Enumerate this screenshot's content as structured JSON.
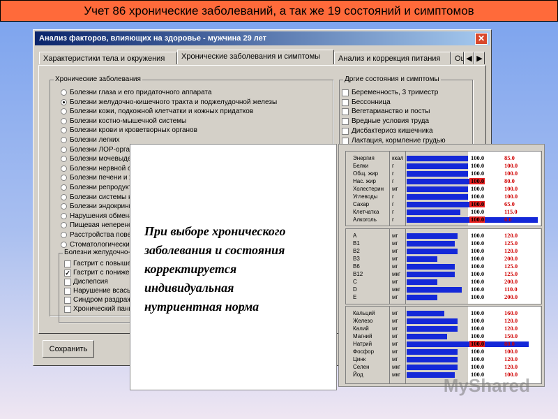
{
  "banner": "Учет 86 хронические заболеваний, а так же 19 состояний и симптомов",
  "window": {
    "title": "Анализ факторов, влияющих на здоровье - мужчина 29 лет",
    "tabs": [
      "Характеристики тела и окружения",
      "Хронические заболевания и симптомы",
      "Анализ и коррекция питания",
      "Оц"
    ],
    "active_tab": 1,
    "chronic": {
      "title": "Хронические заболевания",
      "items": [
        {
          "label": "Болезни глаза и его придаточного аппарата",
          "checked": false
        },
        {
          "label": "Болезни желудочно-кишечного тракта и поджелудочной железы",
          "checked": true
        },
        {
          "label": "Болезни кожи, подкожной клетчатки и кожных придатков",
          "checked": false
        },
        {
          "label": "Болезни костно-мышечной системы",
          "checked": false
        },
        {
          "label": "Болезни крови и кроветворных органов",
          "checked": false
        },
        {
          "label": "Болезни легких",
          "checked": false
        },
        {
          "label": "Болезни ЛОР-органо",
          "checked": false
        },
        {
          "label": "Болезни мочевыдел",
          "checked": false
        },
        {
          "label": "Болезни нервной сис",
          "checked": false
        },
        {
          "label": "Болезни печени и же",
          "checked": false
        },
        {
          "label": "Болезни репродукти",
          "checked": false
        },
        {
          "label": "Болезни системы кр",
          "checked": false
        },
        {
          "label": "Болезни эндокринно",
          "checked": false
        },
        {
          "label": "Нарушения обмена в",
          "checked": false
        },
        {
          "label": "Пищевая непереноси",
          "checked": false
        },
        {
          "label": "Расстройства поведе",
          "checked": false
        },
        {
          "label": "Стоматологические",
          "checked": false
        }
      ]
    },
    "subgroup": {
      "title": "Болезни желудочно-ки",
      "items": [
        {
          "label": "Гастрит с повышен",
          "checked": false
        },
        {
          "label": "Гастрит с понижен",
          "checked": true
        },
        {
          "label": "Диспепсия",
          "checked": false
        },
        {
          "label": "Нарушение всасыва",
          "checked": false
        },
        {
          "label": "Синдром раздраже",
          "checked": false
        },
        {
          "label": "Хронический панкр",
          "checked": false
        }
      ]
    },
    "other": {
      "title": "Дргие состояния и симптомы",
      "items": [
        {
          "label": "Беременность, 3 триместр",
          "checked": false
        },
        {
          "label": "Бессонница",
          "checked": false
        },
        {
          "label": "Вегетарианство и посты",
          "checked": false
        },
        {
          "label": "Вредные условия труда",
          "checked": false
        },
        {
          "label": "Дисбактериоз кишечника",
          "checked": false
        },
        {
          "label": "Лактация, кормление грудью",
          "checked": false
        }
      ]
    },
    "save_button": "Сохранить"
  },
  "note": {
    "lines": [
      "При выборе хронического",
      "заболевания и состояния",
      "корректируется",
      "индивидуальная",
      "нутриентная норма"
    ]
  },
  "nutrients": {
    "sections": [
      {
        "rows": [
          {
            "name": "Энергия",
            "unit": "ккал",
            "bar": 46,
            "norm": "100.0",
            "value": "85.0",
            "highlight": false
          },
          {
            "name": "Белки",
            "unit": "г",
            "bar": 46,
            "norm": "100.0",
            "value": "100.0",
            "highlight": false
          },
          {
            "name": "Общ. жир",
            "unit": "г",
            "bar": 46,
            "norm": "100.0",
            "value": "100.0",
            "highlight": false
          },
          {
            "name": "Нас. жир",
            "unit": "г",
            "bar": 51,
            "norm": "100.0",
            "value": "80.0",
            "highlight": true
          },
          {
            "name": "Холестерин",
            "unit": "мг",
            "bar": 46,
            "norm": "100.0",
            "value": "100.0",
            "highlight": false
          },
          {
            "name": "Углеводы",
            "unit": "г",
            "bar": 46,
            "norm": "100.0",
            "value": "100.0",
            "highlight": false
          },
          {
            "name": "Сахар",
            "unit": "г",
            "bar": 51,
            "norm": "100.0",
            "value": "65.0",
            "highlight": true
          },
          {
            "name": "Клетчатка",
            "unit": "г",
            "bar": 40,
            "norm": "100.0",
            "value": "115.0",
            "highlight": false
          },
          {
            "name": "Алкоголь",
            "unit": "г",
            "bar": 98,
            "norm": "100.0",
            "value": "0.0",
            "highlight": true
          }
        ]
      },
      {
        "rows": [
          {
            "name": "A",
            "unit": "мг",
            "bar": 38,
            "norm": "100.0",
            "value": "120.0",
            "highlight": false
          },
          {
            "name": "B1",
            "unit": "мг",
            "bar": 36,
            "norm": "100.0",
            "value": "125.0",
            "highlight": false
          },
          {
            "name": "B2",
            "unit": "мг",
            "bar": 38,
            "norm": "100.0",
            "value": "120.0",
            "highlight": false
          },
          {
            "name": "B3",
            "unit": "мг",
            "bar": 23,
            "norm": "100.0",
            "value": "200.0",
            "highlight": false
          },
          {
            "name": "B6",
            "unit": "мг",
            "bar": 36,
            "norm": "100.0",
            "value": "125.0",
            "highlight": false
          },
          {
            "name": "B12",
            "unit": "мкг",
            "bar": 36,
            "norm": "100.0",
            "value": "125.0",
            "highlight": false
          },
          {
            "name": "C",
            "unit": "мг",
            "bar": 23,
            "norm": "100.0",
            "value": "200.0",
            "highlight": false
          },
          {
            "name": "D",
            "unit": "мкг",
            "bar": 41,
            "norm": "100.0",
            "value": "110.0",
            "highlight": false
          },
          {
            "name": "E",
            "unit": "мг",
            "bar": 23,
            "norm": "100.0",
            "value": "200.0",
            "highlight": false
          }
        ]
      },
      {
        "rows": [
          {
            "name": "Кальций",
            "unit": "мг",
            "bar": 28,
            "norm": "100.0",
            "value": "160.0",
            "highlight": false
          },
          {
            "name": "Железо",
            "unit": "мг",
            "bar": 38,
            "norm": "100.0",
            "value": "120.0",
            "highlight": false
          },
          {
            "name": "Калий",
            "unit": "мг",
            "bar": 38,
            "norm": "100.0",
            "value": "120.0",
            "highlight": false
          },
          {
            "name": "Магний",
            "unit": "мг",
            "bar": 30,
            "norm": "100.0",
            "value": "150.0",
            "highlight": false
          },
          {
            "name": "Натрий",
            "unit": "мг",
            "bar": 91,
            "norm": "100.0",
            "value": "80.0",
            "highlight": true
          },
          {
            "name": "Фосфор",
            "unit": "мг",
            "bar": 38,
            "norm": "100.0",
            "value": "100.0",
            "highlight": false
          },
          {
            "name": "Цинк",
            "unit": "мг",
            "bar": 38,
            "norm": "100.0",
            "value": "120.0",
            "highlight": false
          },
          {
            "name": "Селен",
            "unit": "мкг",
            "bar": 38,
            "norm": "100.0",
            "value": "120.0",
            "highlight": false
          },
          {
            "name": "Йод",
            "unit": "мкг",
            "bar": 36,
            "norm": "100.0",
            "value": "100.0",
            "highlight": false
          }
        ]
      }
    ]
  },
  "watermark": "MyShared"
}
